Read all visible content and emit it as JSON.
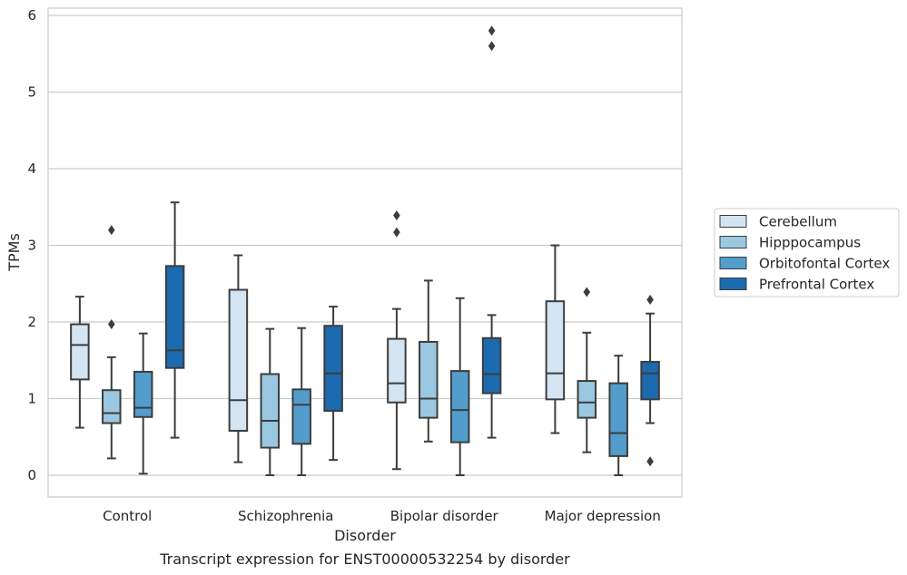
{
  "chart_data": {
    "type": "box",
    "caption": "Transcript expression for ENST00000532254 by disorder",
    "xlabel": "Disorder",
    "ylabel": "TPMs",
    "ylim": [
      -0.28,
      6.1
    ],
    "yticks": [
      0,
      1,
      2,
      3,
      4,
      5,
      6
    ],
    "grid": true,
    "legend_position": "right",
    "categories": [
      "Control",
      "Schizophrenia",
      "Bipolar disorder",
      "Major depression"
    ],
    "series": [
      {
        "name": "Cerebellum",
        "color": "#d3e4f3",
        "boxes": [
          {
            "whisker_low": 0.62,
            "q1": 1.25,
            "median": 1.7,
            "q3": 1.97,
            "whisker_high": 2.33,
            "outliers": []
          },
          {
            "whisker_low": 0.17,
            "q1": 0.58,
            "median": 0.98,
            "q3": 2.42,
            "whisker_high": 2.87,
            "outliers": []
          },
          {
            "whisker_low": 0.08,
            "q1": 0.95,
            "median": 1.2,
            "q3": 1.78,
            "whisker_high": 2.17,
            "outliers": [
              3.17,
              3.39
            ]
          },
          {
            "whisker_low": 0.55,
            "q1": 0.99,
            "median": 1.33,
            "q3": 2.27,
            "whisker_high": 3.0,
            "outliers": []
          }
        ]
      },
      {
        "name": "Hipppocampus",
        "color": "#9ac8e0",
        "boxes": [
          {
            "whisker_low": 0.22,
            "q1": 0.68,
            "median": 0.81,
            "q3": 1.11,
            "whisker_high": 1.54,
            "outliers": [
              1.97,
              3.2
            ]
          },
          {
            "whisker_low": 0.0,
            "q1": 0.36,
            "median": 0.71,
            "q3": 1.32,
            "whisker_high": 1.91,
            "outliers": []
          },
          {
            "whisker_low": 0.44,
            "q1": 0.75,
            "median": 1.0,
            "q3": 1.74,
            "whisker_high": 2.54,
            "outliers": []
          },
          {
            "whisker_low": 0.3,
            "q1": 0.75,
            "median": 0.95,
            "q3": 1.23,
            "whisker_high": 1.86,
            "outliers": [
              2.39
            ]
          }
        ]
      },
      {
        "name": "Orbitofontal Cortex",
        "color": "#529dcc",
        "boxes": [
          {
            "whisker_low": 0.02,
            "q1": 0.76,
            "median": 0.88,
            "q3": 1.35,
            "whisker_high": 1.85,
            "outliers": []
          },
          {
            "whisker_low": 0.0,
            "q1": 0.41,
            "median": 0.92,
            "q3": 1.12,
            "whisker_high": 1.92,
            "outliers": []
          },
          {
            "whisker_low": 0.0,
            "q1": 0.43,
            "median": 0.85,
            "q3": 1.36,
            "whisker_high": 2.31,
            "outliers": []
          },
          {
            "whisker_low": 0.0,
            "q1": 0.25,
            "median": 0.55,
            "q3": 1.2,
            "whisker_high": 1.56,
            "outliers": []
          }
        ]
      },
      {
        "name": "Prefrontal Cortex",
        "color": "#1c6aaf",
        "boxes": [
          {
            "whisker_low": 0.49,
            "q1": 1.4,
            "median": 1.63,
            "q3": 2.73,
            "whisker_high": 3.56,
            "outliers": []
          },
          {
            "whisker_low": 0.2,
            "q1": 0.84,
            "median": 1.33,
            "q3": 1.95,
            "whisker_high": 2.2,
            "outliers": []
          },
          {
            "whisker_low": 0.49,
            "q1": 1.07,
            "median": 1.32,
            "q3": 1.79,
            "whisker_high": 2.09,
            "outliers": [
              5.6,
              5.8
            ]
          },
          {
            "whisker_low": 0.68,
            "q1": 0.99,
            "median": 1.33,
            "q3": 1.48,
            "whisker_high": 2.11,
            "outliers": [
              0.18,
              2.29
            ]
          }
        ]
      }
    ]
  }
}
